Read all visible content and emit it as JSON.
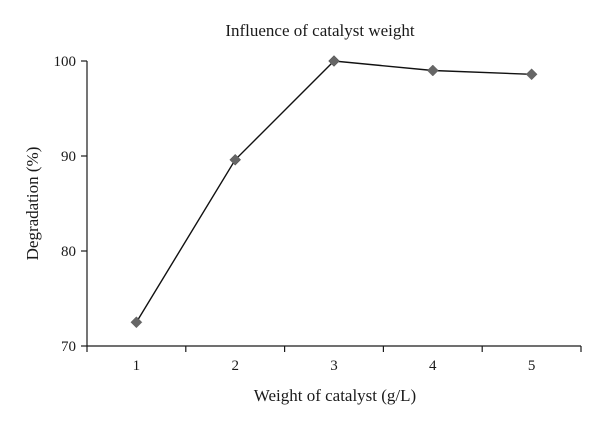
{
  "chart_data": {
    "type": "line",
    "title": "Influence of catalyst weight",
    "xlabel": "Weight of catalyst (g/L)",
    "ylabel": "Degradation (%)",
    "categories": [
      "1",
      "2",
      "3",
      "4",
      "5"
    ],
    "series": [
      {
        "values": [
          72.5,
          89.6,
          100.0,
          99.0,
          98.6
        ],
        "color": "#666666",
        "marker": "diamond"
      }
    ],
    "ylim": [
      70,
      100
    ],
    "yticks": [
      "70",
      "80",
      "90",
      "100"
    ],
    "grid": false,
    "legend": "none"
  }
}
